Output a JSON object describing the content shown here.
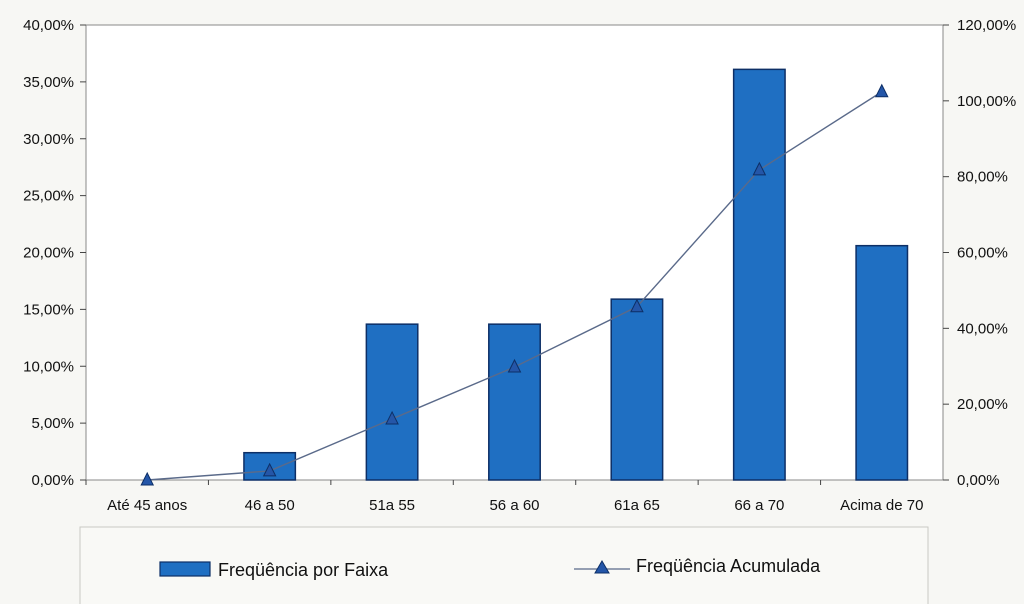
{
  "chart_data": {
    "type": "bar",
    "categories": [
      "Até 45 anos",
      "46 a 50",
      "51a 55",
      "56 a 60",
      "61a 65",
      "66 a 70",
      "Acima de 70"
    ],
    "series": [
      {
        "name": "Freqüência por Faixa",
        "type": "bar",
        "axis": "left",
        "values": [
          0.0,
          2.4,
          13.7,
          13.7,
          15.9,
          36.1,
          20.6
        ]
      },
      {
        "name": "Freqüência Acumulada",
        "type": "line",
        "axis": "right",
        "marker": "triangle",
        "values": [
          0.0,
          2.4,
          16.1,
          29.8,
          45.7,
          81.8,
          102.4
        ]
      }
    ],
    "y_left": {
      "ylim": [
        0,
        40
      ],
      "ticks": [
        "0,00%",
        "5,00%",
        "10,00%",
        "15,00%",
        "20,00%",
        "25,00%",
        "30,00%",
        "35,00%",
        "40,00%"
      ]
    },
    "y_right": {
      "ylim": [
        0,
        120
      ],
      "ticks": [
        "0,00%",
        "20,00%",
        "40,00%",
        "60,00%",
        "80,00%",
        "100,00%",
        "120,00%"
      ]
    },
    "legend_position": "bottom",
    "grid": false,
    "colors": {
      "bar_fill": "#1f6fc2",
      "bar_stroke": "#0d2f66",
      "line": "#5a6a8a",
      "marker": "#2456a8"
    }
  }
}
